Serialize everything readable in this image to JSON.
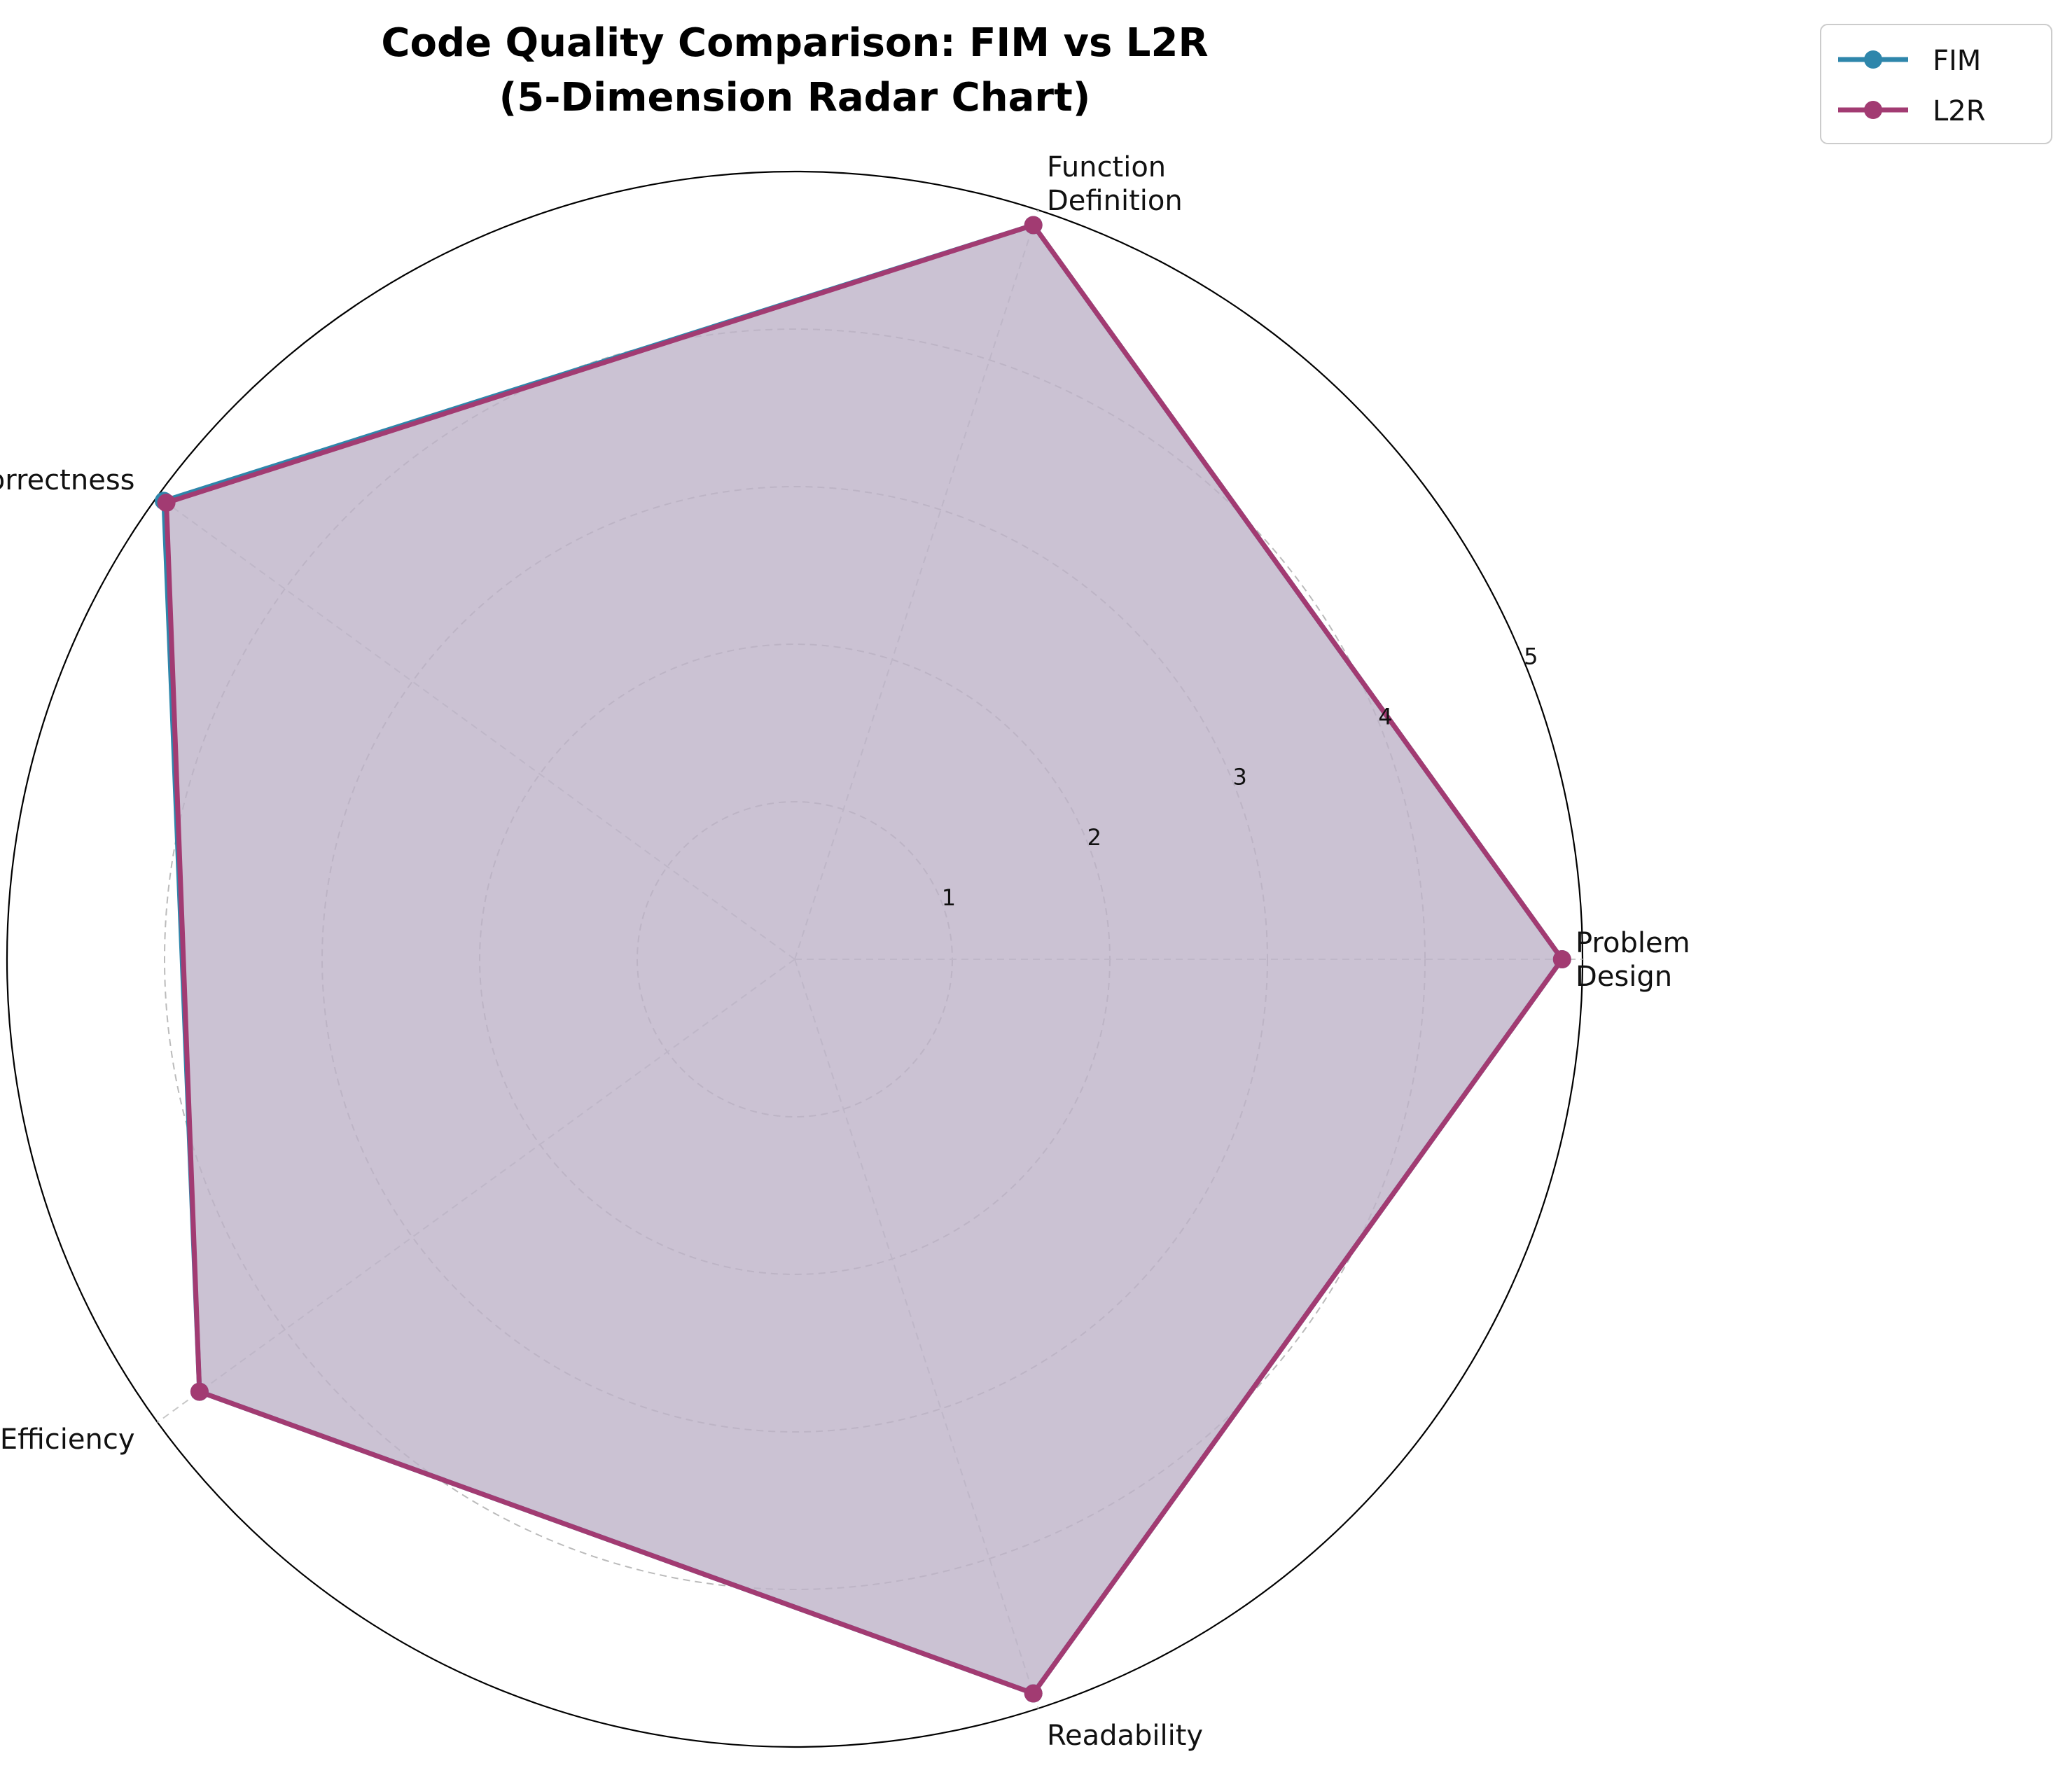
{
  "chart_data": {
    "type": "radar",
    "title": "Code Quality Comparison: FIM vs L2R",
    "subtitle": "(5-Dimension Radar Chart)",
    "axes": [
      [
        "Problem",
        "Design"
      ],
      [
        "Function",
        "Definition"
      ],
      [
        "Correctness"
      ],
      [
        "Efficiency"
      ],
      [
        "Readability"
      ]
    ],
    "rlim": [
      0,
      5
    ],
    "rticks": [
      "1",
      "2",
      "3",
      "4",
      "5"
    ],
    "grid": true,
    "legend_position": "top-right",
    "series": [
      {
        "name": "FIM",
        "color": "#2e86ab",
        "values": [
          4.87,
          4.9,
          4.95,
          4.67,
          4.9
        ]
      },
      {
        "name": "L2R",
        "color": "#a23b72",
        "values": [
          4.87,
          4.9,
          4.93,
          4.67,
          4.9
        ]
      }
    ],
    "fill_color": "#bdb2c9"
  }
}
